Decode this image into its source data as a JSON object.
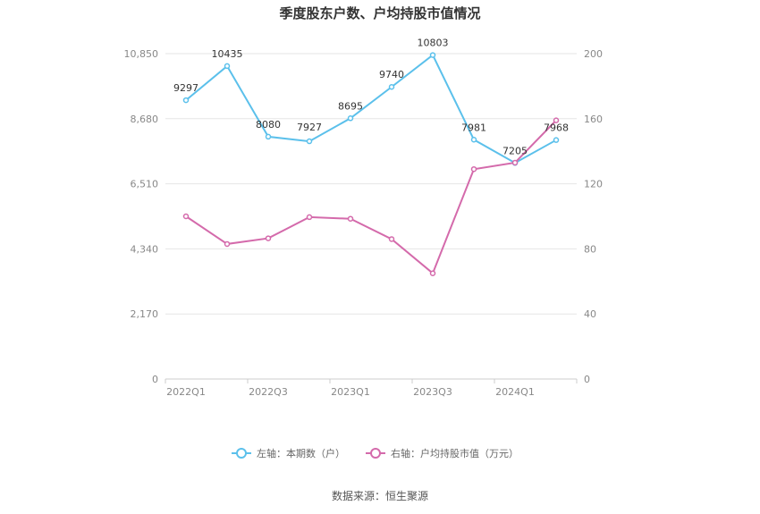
{
  "chart_data": {
    "type": "line",
    "title": "季度股东户数、户均持股市值情况",
    "categories": [
      "2022Q1",
      "2022Q2",
      "2022Q3",
      "2022Q4",
      "2023Q1",
      "2023Q2",
      "2023Q3",
      "2023Q4",
      "2024Q1",
      "2024Q2"
    ],
    "x_tick_labels": [
      "2022Q1",
      "2022Q3",
      "2023Q1",
      "2023Q3",
      "2024Q1"
    ],
    "y_left": {
      "ticks": [
        "0",
        "2,170",
        "4,340",
        "6,510",
        "8,680",
        "10,850"
      ],
      "ylim": [
        0,
        10850
      ]
    },
    "y_right": {
      "ticks": [
        "0",
        "40",
        "80",
        "120",
        "160",
        "200"
      ],
      "ylim": [
        0,
        200
      ]
    },
    "series": [
      {
        "name": "左轴：本期数（户）",
        "axis": "left",
        "color": "#5bc0eb",
        "values": [
          9297,
          10435,
          8080,
          7927,
          8695,
          9740,
          10803,
          7981,
          7205,
          7968
        ],
        "labels": [
          "9297",
          "10435",
          "8080",
          "7927",
          "8695",
          "9740",
          "10803",
          "7981",
          "7205",
          "7968"
        ]
      },
      {
        "name": "右轴：户均持股市值（万元）",
        "axis": "right",
        "color": "#d46aab",
        "values": [
          100,
          83,
          86.5,
          99.5,
          98.5,
          86,
          65,
          129,
          133,
          159
        ]
      }
    ],
    "grid": true,
    "legend_position": "bottom"
  },
  "source": "数据来源：恒生聚源"
}
